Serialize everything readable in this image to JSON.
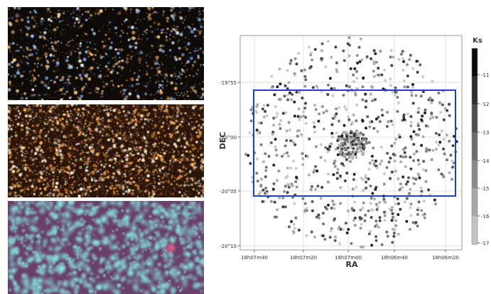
{
  "images": [
    {
      "name": "optical-image",
      "palette": "dark-orange-blue"
    },
    {
      "name": "dense-starfield-image",
      "palette": "orange-gold"
    },
    {
      "name": "infrared-image",
      "palette": "cyan-magenta"
    }
  ],
  "chart_data": {
    "type": "scatter",
    "title": "",
    "xlabel": "RA",
    "ylabel": "DEC",
    "x_ticks": [
      "18h07m40",
      "18h07m20",
      "18h07m00",
      "18h06m40",
      "18h06m20"
    ],
    "y_ticks": [
      "-19°55",
      "-20°00",
      "-20°05",
      "-20°10"
    ],
    "x_axis_reversed": true,
    "grid": true,
    "colorbar": {
      "label": "Ks",
      "ticks": [
        "-11",
        "-12",
        "-13",
        "-14",
        "-15",
        "-16",
        "-17"
      ],
      "range": [
        -17.5,
        -10.5
      ],
      "colors": [
        "#0c0c0c",
        "#2f2f2f",
        "#4e4e4e",
        "#6c6c6c",
        "#8a8a8a",
        "#a7a7a7",
        "#c4c4c4"
      ]
    },
    "field_shape": "circular",
    "cluster_center_label": "18h07m00",
    "rectangle": {
      "color": "#1d3fd6",
      "ra_range": [
        "18h07m40 (approx +3s)",
        "18h06m20 (approx +3s)"
      ],
      "dec_range": [
        "-19°56.4",
        "-20°05.7"
      ]
    },
    "points": {
      "description": "several hundred sources in a circular field of radius ~10.5 arcmin centred near 18h07m00, -20°01, with a dense cluster concentration near the center",
      "count": 900
    }
  }
}
